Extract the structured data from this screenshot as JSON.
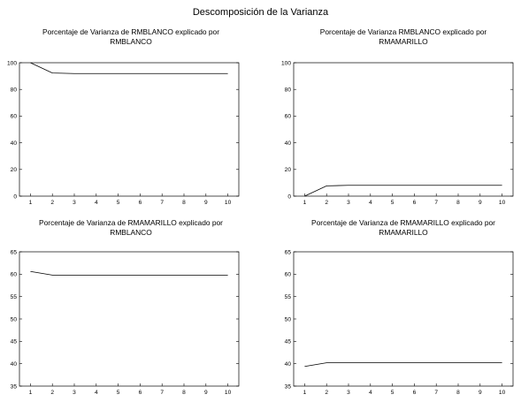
{
  "title": "Descomposición de la Varianza",
  "chart_data": [
    {
      "type": "line",
      "title": [
        "Porcentaje de Varianza de RMBLANCO explicado por",
        "RMBLANCO"
      ],
      "x": [
        1,
        2,
        3,
        4,
        5,
        6,
        7,
        8,
        9,
        10
      ],
      "values": [
        100,
        92.3,
        91.9,
        91.9,
        91.9,
        91.9,
        91.9,
        91.9,
        91.9,
        91.9
      ],
      "ylim": [
        0,
        100
      ],
      "yticks": [
        0,
        20,
        40,
        60,
        80,
        100
      ],
      "xticks": [
        1,
        2,
        3,
        4,
        5,
        6,
        7,
        8,
        9,
        10
      ],
      "grid": false
    },
    {
      "type": "line",
      "title": [
        "Porcentaje de Varianza RMBLANCO explicado por",
        "RMAMARILLO"
      ],
      "x": [
        1,
        2,
        3,
        4,
        5,
        6,
        7,
        8,
        9,
        10
      ],
      "values": [
        0,
        7.7,
        8.1,
        8.1,
        8.1,
        8.1,
        8.1,
        8.1,
        8.1,
        8.1
      ],
      "ylim": [
        0,
        100
      ],
      "yticks": [
        0,
        20,
        40,
        60,
        80,
        100
      ],
      "xticks": [
        1,
        2,
        3,
        4,
        5,
        6,
        7,
        8,
        9,
        10
      ],
      "grid": false
    },
    {
      "type": "line",
      "title": [
        "Porcentaje de Varianza de RMAMARILLO explicado por",
        "RMBLANCO"
      ],
      "x": [
        1,
        2,
        3,
        4,
        5,
        6,
        7,
        8,
        9,
        10
      ],
      "values": [
        60.6,
        59.8,
        59.8,
        59.8,
        59.8,
        59.8,
        59.8,
        59.8,
        59.8,
        59.8
      ],
      "ylim": [
        35,
        65
      ],
      "yticks": [
        35,
        40,
        45,
        50,
        55,
        60,
        65
      ],
      "xticks": [
        1,
        2,
        3,
        4,
        5,
        6,
        7,
        8,
        9,
        10
      ],
      "grid": false
    },
    {
      "type": "line",
      "title": [
        "Porcentaje de Varianza de  RMAMARILLO explicado por",
        "RMAMARILLO"
      ],
      "x": [
        1,
        2,
        3,
        4,
        5,
        6,
        7,
        8,
        9,
        10
      ],
      "values": [
        39.4,
        40.2,
        40.2,
        40.2,
        40.2,
        40.2,
        40.2,
        40.2,
        40.2,
        40.2
      ],
      "ylim": [
        35,
        65
      ],
      "yticks": [
        35,
        40,
        45,
        50,
        55,
        60,
        65
      ],
      "xticks": [
        1,
        2,
        3,
        4,
        5,
        6,
        7,
        8,
        9,
        10
      ],
      "grid": false
    }
  ]
}
